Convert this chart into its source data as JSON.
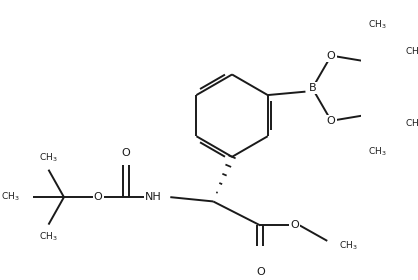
{
  "bg_color": "#ffffff",
  "line_color": "#1a1a1a",
  "lw": 1.4,
  "figsize": [
    4.18,
    2.8
  ],
  "dpi": 100,
  "xlim": [
    0,
    418
  ],
  "ylim": [
    0,
    280
  ]
}
